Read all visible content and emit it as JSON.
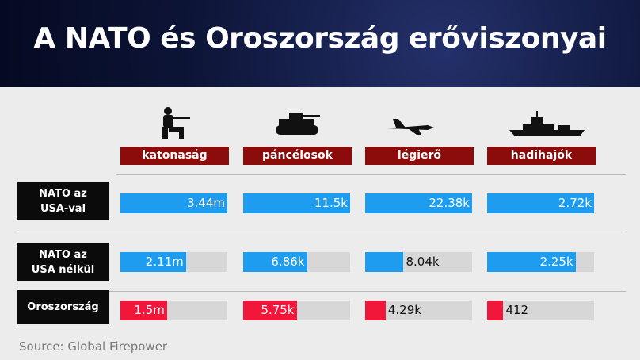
{
  "chart_data": {
    "type": "bar",
    "title": "A NATO és Oroszország erőviszonyai",
    "categories": [
      "katonaság",
      "páncélosok",
      "légierő",
      "hadihajók"
    ],
    "series": [
      {
        "name": "NATO az\nUSA-val",
        "color": "#1e9df0",
        "values": [
          3440000,
          11500,
          22380,
          2720
        ],
        "value_labels": [
          "3.44m",
          "11.5k",
          "22.38k",
          "2.72k"
        ]
      },
      {
        "name": "NATO az\nUSA nélkül",
        "color": "#1e9df0",
        "values": [
          2110000,
          6860,
          8040,
          2250
        ],
        "value_labels": [
          "2.11m",
          "6.86k",
          "8.04k",
          "2.25k"
        ]
      },
      {
        "name": "Oroszország",
        "color": "#f0173a",
        "values": [
          1500000,
          5750,
          4290,
          412
        ],
        "value_labels": [
          "1.5m",
          "5.75k",
          "4.29k",
          "412"
        ]
      }
    ],
    "source": "Source: Global Firepower"
  }
}
